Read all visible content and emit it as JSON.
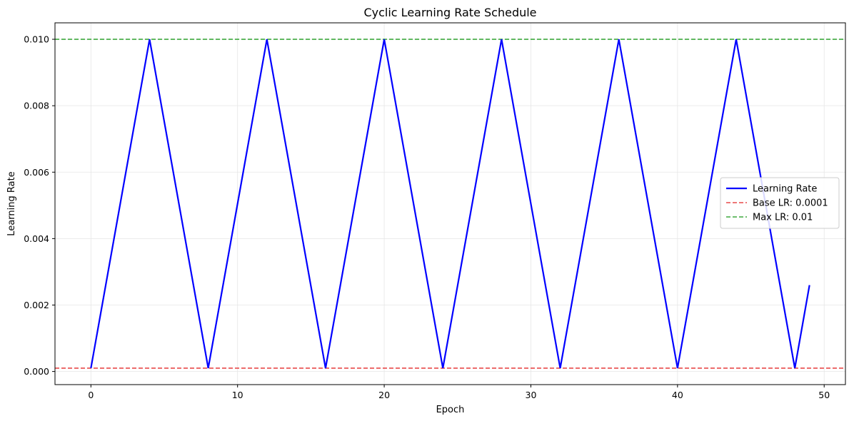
{
  "chart_data": {
    "type": "line",
    "title": "Cyclic Learning Rate Schedule",
    "xlabel": "Epoch",
    "ylabel": "Learning Rate",
    "xlim": [
      -2.45,
      51.45
    ],
    "ylim": [
      -0.000395,
      0.010495
    ],
    "xticks": [
      0,
      10,
      20,
      30,
      40,
      50
    ],
    "yticks": [
      0.0,
      0.002,
      0.004,
      0.006,
      0.008,
      0.01
    ],
    "xtick_labels": [
      "0",
      "10",
      "20",
      "30",
      "40",
      "50"
    ],
    "ytick_labels": [
      "0.000",
      "0.002",
      "0.004",
      "0.006",
      "0.008",
      "0.010"
    ],
    "grid": true,
    "legend_position": "center-right",
    "series": [
      {
        "name": "Learning Rate",
        "style": "solid",
        "color": "#0000ff",
        "x": [
          0,
          4,
          8,
          12,
          16,
          20,
          24,
          28,
          32,
          36,
          40,
          44,
          48,
          49
        ],
        "y": [
          0.0001,
          0.01,
          0.0001,
          0.01,
          0.0001,
          0.01,
          0.0001,
          0.01,
          0.0001,
          0.01,
          0.0001,
          0.01,
          0.0001,
          0.0026
        ]
      }
    ],
    "hlines": [
      {
        "name": "Base LR: 0.0001",
        "y": 0.0001,
        "style": "dashed",
        "color": "#e84a4a"
      },
      {
        "name": "Max LR: 0.01",
        "y": 0.01,
        "style": "dashed",
        "color": "#3fa93f"
      }
    ]
  }
}
